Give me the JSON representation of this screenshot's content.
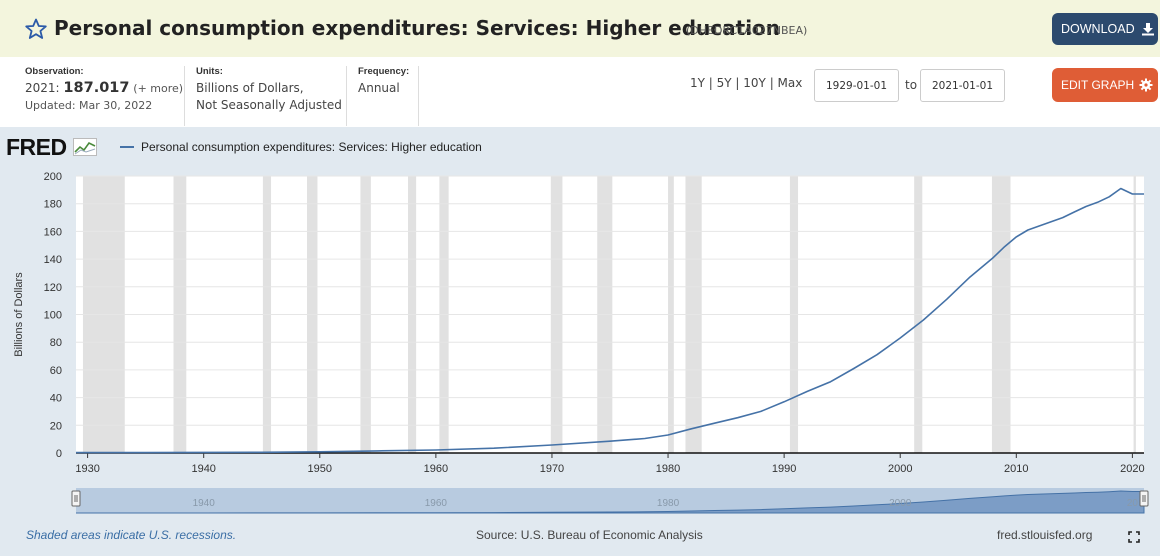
{
  "header": {
    "title": "Personal consumption expenditures: Services: Higher education",
    "series_id": "(DHEDRC1A027NBEA)",
    "download_label": "DOWNLOAD",
    "download_icon": "download-icon",
    "star_icon": "star-icon"
  },
  "info": {
    "observation_label": "Observation:",
    "observation_year": "2021:",
    "observation_value": "187.017",
    "observation_more": "(+ more)",
    "updated": "Updated: Mar 30, 2022",
    "units_label": "Units:",
    "units_line1": "Billions of Dollars,",
    "units_line2": "Not Seasonally Adjusted",
    "frequency_label": "Frequency:",
    "frequency_value": "Annual",
    "range_links": "1Y | 5Y | 10Y | Max",
    "start_date": "1929-01-01",
    "to_label": "to",
    "end_date": "2021-01-01",
    "edit_graph_label": "EDIT GRAPH",
    "edit_icon": "gear-icon"
  },
  "footer": {
    "recession_note": "Shaded areas indicate U.S. recessions.",
    "source": "Source: U.S. Bureau of Economic Analysis",
    "site": "fred.stlouisfed.org"
  },
  "colors": {
    "line": "#4572a7",
    "recession": "#e1e1e1",
    "download_button": "#2c4a6e",
    "edit_button": "#df5d36",
    "title_bar": "#f3f5dd",
    "chart_background": "#e1e9f0"
  },
  "chart_data": {
    "type": "line",
    "logo": "FRED",
    "legend": [
      "Personal consumption expenditures: Services: Higher education"
    ],
    "ylabel": "Billions of Dollars",
    "xlabel": "",
    "ylim": [
      0,
      200
    ],
    "xlim": [
      1929,
      2021
    ],
    "yticks": [
      0,
      20,
      40,
      60,
      80,
      100,
      120,
      140,
      160,
      180,
      200
    ],
    "xticks": [
      1930,
      1940,
      1950,
      1960,
      1970,
      1980,
      1990,
      2000,
      2010,
      2020
    ],
    "navigator_ticks": [
      "1940",
      "1960",
      "1980",
      "2000",
      "20"
    ],
    "grid": "horizontal",
    "recessions": [
      [
        1929.6,
        1933.2
      ],
      [
        1937.4,
        1938.5
      ],
      [
        1945.1,
        1945.8
      ],
      [
        1948.9,
        1949.8
      ],
      [
        1953.5,
        1954.4
      ],
      [
        1957.6,
        1958.3
      ],
      [
        1960.3,
        1961.1
      ],
      [
        1969.9,
        1970.9
      ],
      [
        1973.9,
        1975.2
      ],
      [
        1980.0,
        1980.5
      ],
      [
        1981.5,
        1982.9
      ],
      [
        1990.5,
        1991.2
      ],
      [
        2001.2,
        2001.9
      ],
      [
        2007.9,
        2009.5
      ],
      [
        2020.1,
        2020.3
      ]
    ],
    "series": [
      {
        "name": "Personal consumption expenditures: Services: Higher education",
        "x": [
          1929,
          1935,
          1940,
          1945,
          1950,
          1955,
          1960,
          1965,
          1970,
          1975,
          1978,
          1980,
          1982,
          1984,
          1986,
          1988,
          1990,
          1992,
          1994,
          1996,
          1998,
          2000,
          2002,
          2004,
          2006,
          2008,
          2009,
          2010,
          2011,
          2012,
          2013,
          2014,
          2015,
          2016,
          2017,
          2018,
          2019,
          2020,
          2021
        ],
        "values": [
          0.3,
          0.3,
          0.4,
          0.5,
          0.9,
          1.5,
          2.2,
          3.5,
          5.8,
          8.5,
          10.5,
          13.0,
          17.5,
          21.5,
          25.5,
          30.0,
          37.0,
          44.5,
          51.5,
          61.0,
          71.0,
          83.0,
          96.0,
          111.0,
          127.0,
          141.0,
          149.0,
          156.0,
          161.0,
          164.0,
          167.0,
          170.0,
          174.0,
          178.0,
          181.0,
          185.0,
          191.0,
          187.0,
          187.017
        ]
      }
    ]
  }
}
